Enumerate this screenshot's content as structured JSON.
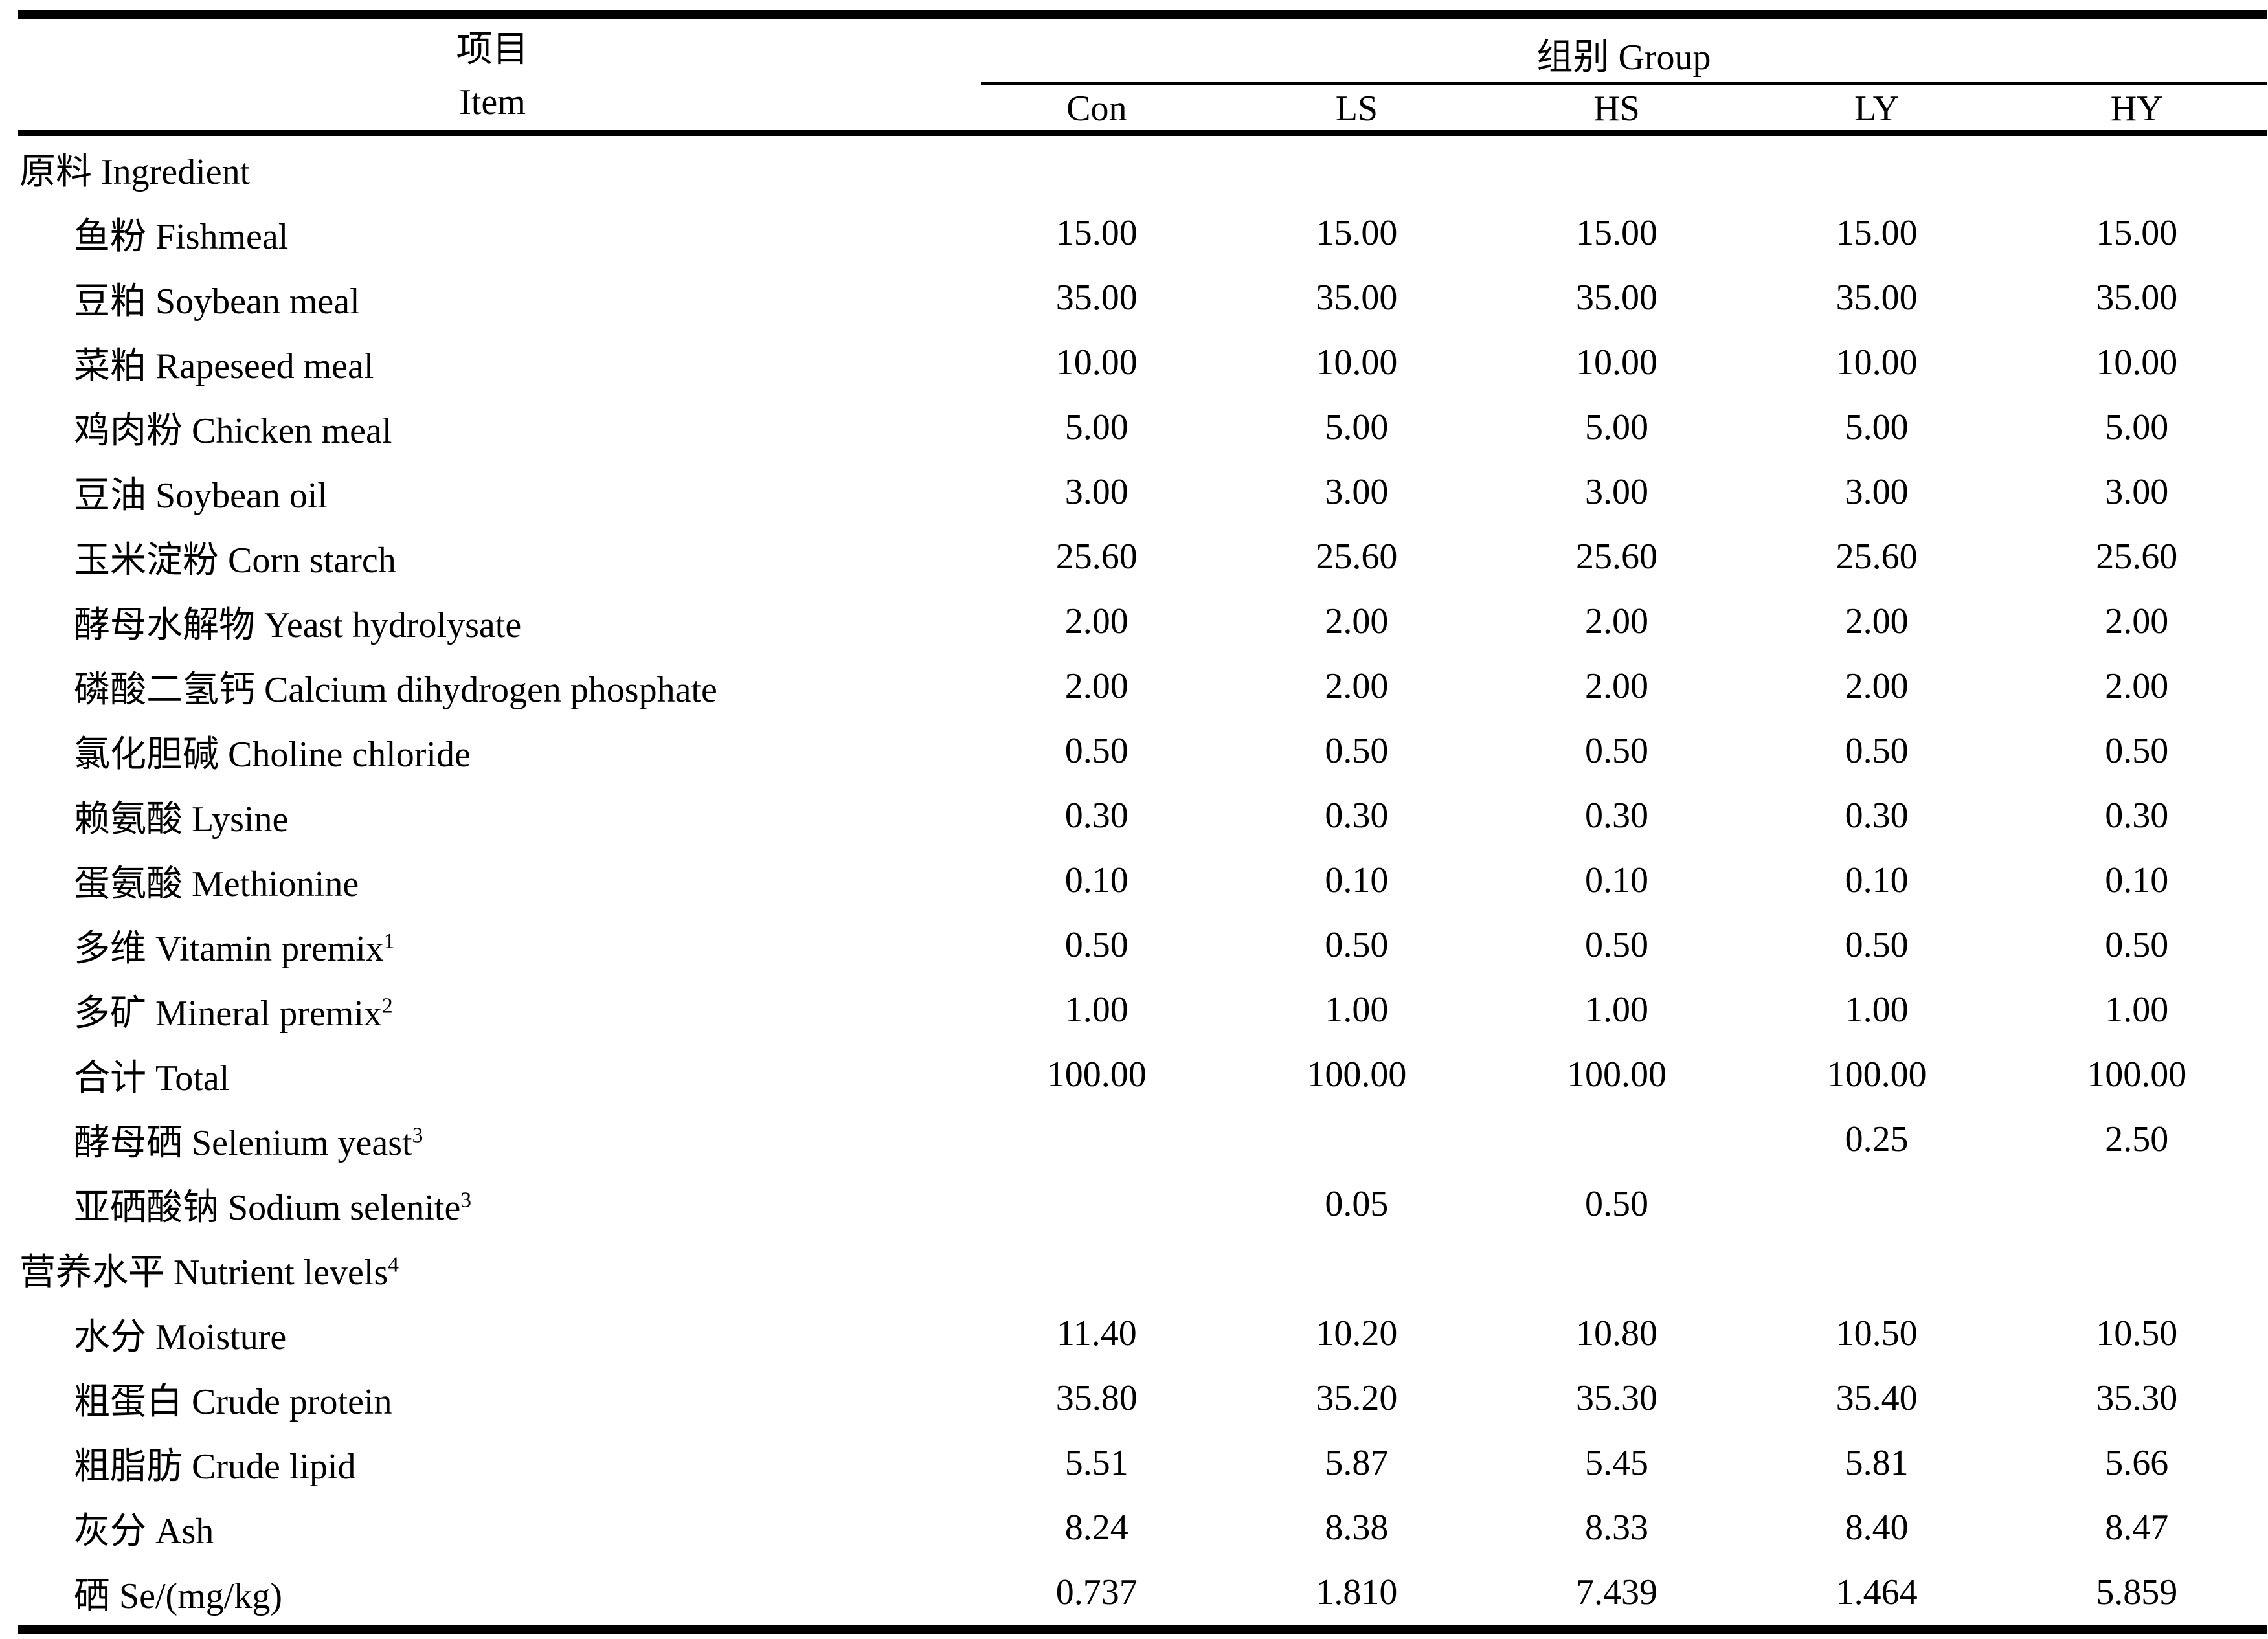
{
  "header": {
    "item_zh": "项目",
    "item_en": "Item",
    "group": "组别 Group",
    "columns": [
      "Con",
      "LS",
      "HS",
      "LY",
      "HY"
    ]
  },
  "rows": [
    {
      "label": "原料 Ingredient",
      "indent": 0,
      "values": [
        "",
        "",
        "",
        "",
        ""
      ]
    },
    {
      "label": "鱼粉 Fishmeal",
      "indent": 1,
      "values": [
        "15.00",
        "15.00",
        "15.00",
        "15.00",
        "15.00"
      ]
    },
    {
      "label": "豆粕 Soybean meal",
      "indent": 1,
      "values": [
        "35.00",
        "35.00",
        "35.00",
        "35.00",
        "35.00"
      ]
    },
    {
      "label": "菜粕 Rapeseed meal",
      "indent": 1,
      "values": [
        "10.00",
        "10.00",
        "10.00",
        "10.00",
        "10.00"
      ]
    },
    {
      "label": "鸡肉粉 Chicken meal",
      "indent": 1,
      "values": [
        "5.00",
        "5.00",
        "5.00",
        "5.00",
        "5.00"
      ]
    },
    {
      "label": "豆油 Soybean oil",
      "indent": 1,
      "values": [
        "3.00",
        "3.00",
        "3.00",
        "3.00",
        "3.00"
      ]
    },
    {
      "label": "玉米淀粉 Corn starch",
      "indent": 1,
      "values": [
        "25.60",
        "25.60",
        "25.60",
        "25.60",
        "25.60"
      ]
    },
    {
      "label": "酵母水解物 Yeast hydrolysate",
      "indent": 1,
      "values": [
        "2.00",
        "2.00",
        "2.00",
        "2.00",
        "2.00"
      ]
    },
    {
      "label": "磷酸二氢钙 Calcium dihydrogen phosphate",
      "indent": 1,
      "values": [
        "2.00",
        "2.00",
        "2.00",
        "2.00",
        "2.00"
      ]
    },
    {
      "label": "氯化胆碱 Choline chloride",
      "indent": 1,
      "values": [
        "0.50",
        "0.50",
        "0.50",
        "0.50",
        "0.50"
      ]
    },
    {
      "label": "赖氨酸 Lysine",
      "indent": 1,
      "values": [
        "0.30",
        "0.30",
        "0.30",
        "0.30",
        "0.30"
      ]
    },
    {
      "label": "蛋氨酸 Methionine",
      "indent": 1,
      "values": [
        "0.10",
        "0.10",
        "0.10",
        "0.10",
        "0.10"
      ]
    },
    {
      "label": "多维 Vitamin premix",
      "sup": "1",
      "indent": 1,
      "values": [
        "0.50",
        "0.50",
        "0.50",
        "0.50",
        "0.50"
      ]
    },
    {
      "label": "多矿 Mineral premix",
      "sup": "2",
      "indent": 1,
      "values": [
        "1.00",
        "1.00",
        "1.00",
        "1.00",
        "1.00"
      ]
    },
    {
      "label": "合计 Total",
      "indent": 1,
      "values": [
        "100.00",
        "100.00",
        "100.00",
        "100.00",
        "100.00"
      ]
    },
    {
      "label": "酵母硒 Selenium yeast",
      "sup": "3",
      "indent": 1,
      "values": [
        "",
        "",
        "",
        "0.25",
        "2.50"
      ]
    },
    {
      "label": "亚硒酸钠 Sodium selenite",
      "sup": "3",
      "indent": 1,
      "values": [
        "",
        "0.05",
        "0.50",
        "",
        ""
      ]
    },
    {
      "label": "营养水平 Nutrient levels",
      "sup": "4",
      "indent": 0,
      "values": [
        "",
        "",
        "",
        "",
        ""
      ]
    },
    {
      "label": "水分 Moisture",
      "indent": 1,
      "values": [
        "11.40",
        "10.20",
        "10.80",
        "10.50",
        "10.50"
      ]
    },
    {
      "label": "粗蛋白 Crude protein",
      "indent": 1,
      "values": [
        "35.80",
        "35.20",
        "35.30",
        "35.40",
        "35.30"
      ]
    },
    {
      "label": "粗脂肪 Crude lipid",
      "indent": 1,
      "values": [
        "5.51",
        "5.87",
        "5.45",
        "5.81",
        "5.66"
      ]
    },
    {
      "label": "灰分 Ash",
      "indent": 1,
      "values": [
        "8.24",
        "8.38",
        "8.33",
        "8.40",
        "8.47"
      ]
    },
    {
      "label": "硒 Se/(mg/kg)",
      "indent": 1,
      "values": [
        "0.737",
        "1.810",
        "7.439",
        "1.464",
        "5.859"
      ]
    }
  ]
}
